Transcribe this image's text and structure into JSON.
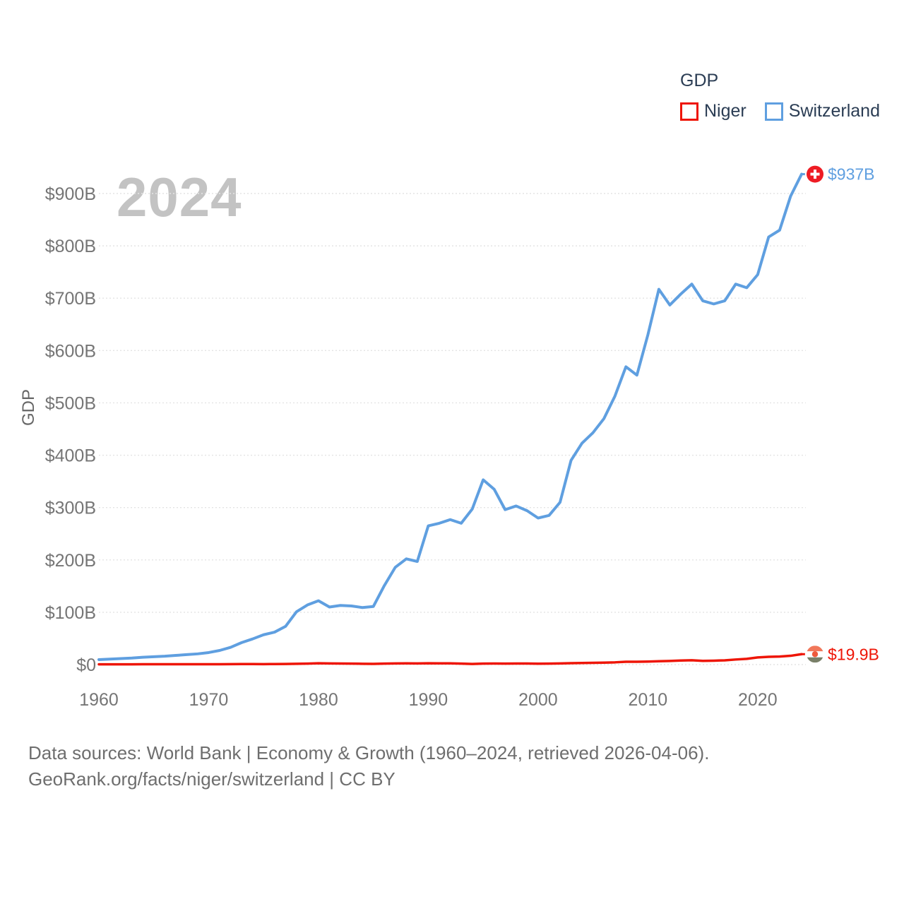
{
  "legend": {
    "title": "GDP",
    "items": [
      {
        "label": "Niger",
        "color": "#ee1506"
      },
      {
        "label": "Switzerland",
        "color": "#5f9fe0"
      }
    ]
  },
  "watermark": "2024",
  "y_axis": {
    "title": "GDP",
    "ticks": [
      {
        "label": "$0",
        "value": 0
      },
      {
        "label": "$100B",
        "value": 100
      },
      {
        "label": "$200B",
        "value": 200
      },
      {
        "label": "$300B",
        "value": 300
      },
      {
        "label": "$400B",
        "value": 400
      },
      {
        "label": "$500B",
        "value": 500
      },
      {
        "label": "$600B",
        "value": 600
      },
      {
        "label": "$700B",
        "value": 700
      },
      {
        "label": "$800B",
        "value": 800
      },
      {
        "label": "$900B",
        "value": 900
      }
    ]
  },
  "x_axis": {
    "ticks": [
      {
        "label": "1960",
        "value": 1960
      },
      {
        "label": "1970",
        "value": 1970
      },
      {
        "label": "1980",
        "value": 1980
      },
      {
        "label": "1990",
        "value": 1990
      },
      {
        "label": "2000",
        "value": 2000
      },
      {
        "label": "2010",
        "value": 2010
      },
      {
        "label": "2020",
        "value": 2020
      }
    ]
  },
  "chart_data": {
    "type": "line",
    "title": "GDP",
    "ylabel": "GDP",
    "xlabel": "",
    "xlim": [
      1960,
      2024
    ],
    "ylim": [
      0,
      950
    ],
    "grid": "horizontal-dotted",
    "legend_position": "top-right",
    "x": [
      1960,
      1961,
      1962,
      1963,
      1964,
      1965,
      1966,
      1967,
      1968,
      1969,
      1970,
      1971,
      1972,
      1973,
      1974,
      1975,
      1976,
      1977,
      1978,
      1979,
      1980,
      1981,
      1982,
      1983,
      1984,
      1985,
      1986,
      1987,
      1988,
      1989,
      1990,
      1991,
      1992,
      1993,
      1994,
      1995,
      1996,
      1997,
      1998,
      1999,
      2000,
      2001,
      2002,
      2003,
      2004,
      2005,
      2006,
      2007,
      2008,
      2009,
      2010,
      2011,
      2012,
      2013,
      2014,
      2015,
      2016,
      2017,
      2018,
      2019,
      2020,
      2021,
      2022,
      2023,
      2024
    ],
    "unit": "billion USD",
    "series": [
      {
        "name": "Niger",
        "color": "#ee1506",
        "line_width": 3.5,
        "end_label": "$19.9B",
        "marker": "niger-flag-icon",
        "values": [
          0.45,
          0.49,
          0.55,
          0.59,
          0.62,
          0.67,
          0.68,
          0.66,
          0.66,
          0.64,
          0.65,
          0.7,
          0.79,
          0.95,
          1.0,
          0.89,
          1.0,
          1.2,
          1.5,
          1.9,
          2.5,
          2.2,
          2.1,
          1.9,
          1.6,
          1.4,
          1.9,
          2.2,
          2.3,
          2.2,
          2.5,
          2.3,
          2.3,
          1.8,
          1.2,
          1.9,
          2.0,
          1.8,
          2.1,
          2.0,
          1.7,
          1.9,
          2.2,
          2.7,
          3.0,
          3.4,
          3.7,
          4.3,
          5.4,
          5.4,
          5.7,
          6.4,
          6.9,
          7.7,
          8.2,
          7.1,
          7.5,
          8.1,
          9.7,
          11.0,
          13.7,
          14.9,
          15.3,
          16.8,
          19.9
        ]
      },
      {
        "name": "Switzerland",
        "color": "#5f9fe0",
        "line_width": 4,
        "end_label": "$937B",
        "marker": "swiss-flag-icon",
        "values": [
          9.5,
          10.5,
          11.5,
          12.5,
          14,
          15,
          16,
          17.5,
          19,
          20.5,
          23,
          27,
          33,
          42,
          49,
          57,
          62,
          73,
          101,
          114,
          122,
          110,
          113,
          112,
          109,
          111,
          151,
          186,
          202,
          197,
          265,
          270,
          277,
          270,
          297,
          353,
          335,
          296,
          303,
          294,
          280,
          285,
          310,
          390,
          423,
          443,
          470,
          513,
          569,
          553,
          630,
          717,
          687,
          708,
          727,
          695,
          689,
          695,
          727,
          720,
          745,
          817,
          830,
          895,
          937
        ]
      }
    ],
    "flag_colors": {
      "swiss_red": "#ee1c24",
      "niger_orange": "#f1775a",
      "niger_dot": "#ee5a3c",
      "niger_green": "#798068"
    }
  },
  "footer": {
    "line1": "Data sources: World Bank | Economy & Growth (1960–2024, retrieved 2026-04-06).",
    "line2": "GeoRank.org/facts/niger/switzerland | CC BY"
  }
}
